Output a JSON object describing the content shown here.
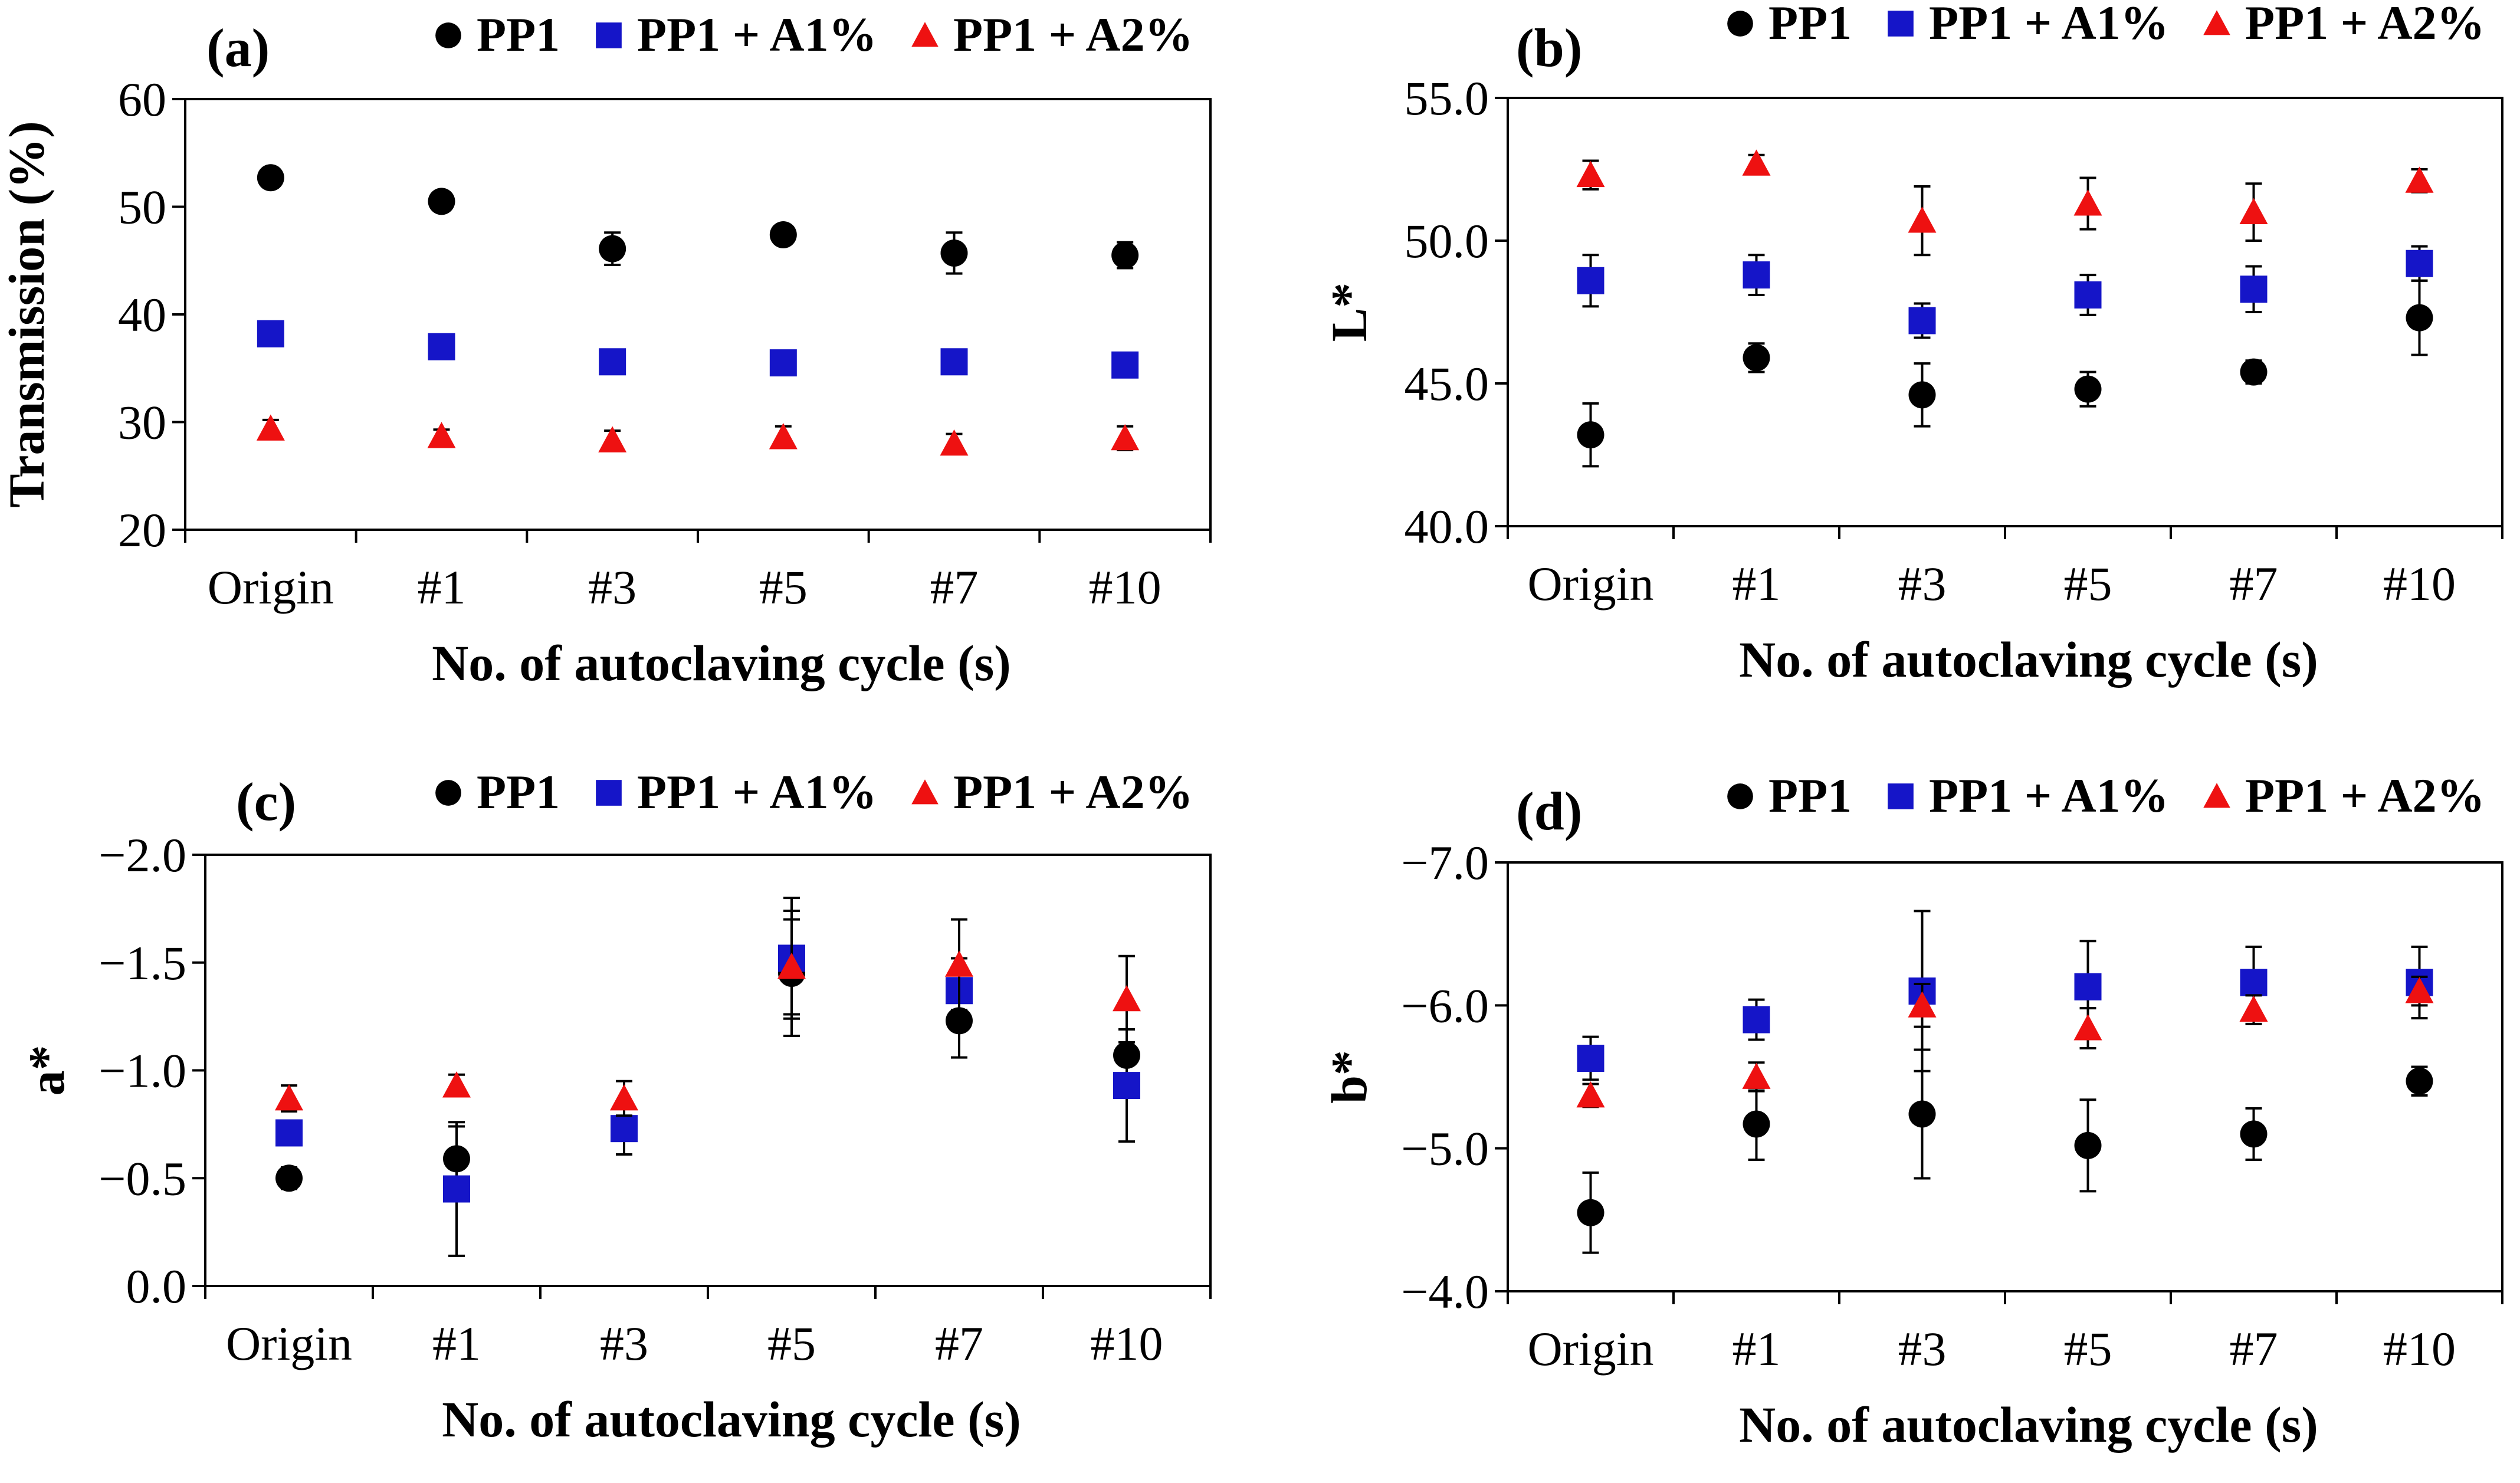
{
  "colors": {
    "PP1": "#000000",
    "PP1 + A1%": "#1515c8",
    "PP1 + A2%": "#ee1111"
  },
  "markers": {
    "PP1": "circle",
    "PP1 + A1%": "square",
    "PP1 + A2%": "triangle"
  },
  "chart_data": [
    {
      "id": "a",
      "panel_label": "(a)",
      "type": "scatter",
      "error_bars": true,
      "categories": [
        "Origin",
        "#1",
        "#3",
        "#5",
        "#7",
        "#10"
      ],
      "xlabel": "No. of autoclaving cycle (s)",
      "ylabel": "Transmission (%)",
      "ylim": [
        20,
        60
      ],
      "yticks": [
        20,
        30,
        40,
        50,
        60
      ],
      "ytick_labels": [
        "20",
        "30",
        "40",
        "50",
        "60"
      ],
      "inverted": false,
      "series": [
        {
          "name": "PP1",
          "values": [
            52.7,
            50.5,
            46.1,
            47.4,
            45.7,
            45.5
          ],
          "errors": [
            0.9,
            0.7,
            1.5,
            0.6,
            1.9,
            1.2
          ]
        },
        {
          "name": "PP1 + A1%",
          "values": [
            38.2,
            37.0,
            35.6,
            35.5,
            35.6,
            35.3
          ],
          "errors": [
            0.5,
            0.5,
            0.5,
            0.5,
            0.5,
            0.5
          ]
        },
        {
          "name": "PP1 + A2%",
          "values": [
            29.4,
            28.7,
            28.3,
            28.6,
            28.0,
            28.5
          ],
          "errors": [
            0.8,
            0.6,
            0.9,
            1.0,
            0.9,
            1.1
          ]
        }
      ]
    },
    {
      "id": "b",
      "panel_label": "(b)",
      "type": "scatter",
      "error_bars": true,
      "categories": [
        "Origin",
        "#1",
        "#3",
        "#5",
        "#7",
        "#10"
      ],
      "xlabel": "No. of autoclaving cycle (s)",
      "ylabel": "L*",
      "ylim": [
        40,
        55
      ],
      "yticks": [
        40,
        45,
        50,
        55
      ],
      "ytick_labels": [
        "40.0",
        "45.0",
        "50.0",
        "55.0"
      ],
      "inverted": false,
      "series": [
        {
          "name": "PP1",
          "values": [
            43.2,
            45.9,
            44.6,
            44.8,
            45.4,
            47.3
          ],
          "errors": [
            1.1,
            0.5,
            1.1,
            0.6,
            0.4,
            1.3
          ]
        },
        {
          "name": "PP1 + A1%",
          "values": [
            48.6,
            48.8,
            47.2,
            48.1,
            48.3,
            49.2
          ],
          "errors": [
            0.9,
            0.7,
            0.6,
            0.7,
            0.8,
            0.6
          ]
        },
        {
          "name": "PP1 + A2%",
          "values": [
            52.3,
            52.7,
            50.7,
            51.3,
            51.0,
            52.1
          ],
          "errors": [
            0.5,
            0.3,
            1.2,
            0.9,
            1.0,
            0.4
          ]
        }
      ]
    },
    {
      "id": "c",
      "panel_label": "(c)",
      "type": "scatter",
      "error_bars": true,
      "categories": [
        "Origin",
        "#1",
        "#3",
        "#5",
        "#7",
        "#10"
      ],
      "xlabel": "No. of autoclaving cycle (s)",
      "ylabel": "a*",
      "ylim": [
        0,
        -2
      ],
      "yticks": [
        0,
        -0.5,
        -1,
        -1.5,
        -2
      ],
      "ytick_labels": [
        "0.0",
        "−0.5",
        "−1.0",
        "−1.5",
        "−2.0"
      ],
      "inverted": true,
      "series": [
        {
          "name": "PP1",
          "values": [
            -0.5,
            -0.59,
            -0.73,
            -1.45,
            -1.23,
            -1.07
          ],
          "errors": [
            0.05,
            0.15,
            0.12,
            0.29,
            0.17,
            0.12
          ]
        },
        {
          "name": "PP1 + A1%",
          "values": [
            -0.71,
            -0.45,
            -0.73,
            -1.52,
            -1.37,
            -0.93
          ],
          "errors": [
            0.05,
            0.31,
            0.05,
            0.28,
            0.15,
            0.26
          ]
        },
        {
          "name": "PP1 + A2%",
          "values": [
            -0.87,
            -0.93,
            -0.87,
            -1.48,
            -1.49,
            -1.33
          ],
          "errors": [
            0.06,
            0.05,
            0.08,
            0.22,
            0.21,
            0.2
          ]
        }
      ]
    },
    {
      "id": "d",
      "panel_label": "(d)",
      "type": "scatter",
      "error_bars": true,
      "categories": [
        "Origin",
        "#1",
        "#3",
        "#5",
        "#7",
        "#10"
      ],
      "xlabel": "No. of autoclaving cycle (s)",
      "ylabel": "b*",
      "ylim": [
        -4,
        -7
      ],
      "yticks": [
        -4,
        -5,
        -6,
        -7
      ],
      "ytick_labels": [
        "−4.0",
        "−5.0",
        "−6.0",
        "−7.0"
      ],
      "inverted": true,
      "series": [
        {
          "name": "PP1",
          "values": [
            -4.55,
            -5.17,
            -5.24,
            -5.02,
            -5.1,
            -5.47
          ],
          "errors": [
            0.28,
            0.25,
            0.45,
            0.32,
            0.18,
            0.1
          ]
        },
        {
          "name": "PP1 + A1%",
          "values": [
            -5.63,
            -5.9,
            -6.1,
            -6.13,
            -6.16,
            -6.16
          ],
          "errors": [
            0.15,
            0.14,
            0.56,
            0.32,
            0.25,
            0.25
          ]
        },
        {
          "name": "PP1 + A2%",
          "values": [
            -5.37,
            -5.5,
            -6.0,
            -5.84,
            -5.97,
            -6.1
          ],
          "errors": [
            0.08,
            0.1,
            0.15,
            0.14,
            0.1,
            0.1
          ]
        }
      ]
    }
  ]
}
